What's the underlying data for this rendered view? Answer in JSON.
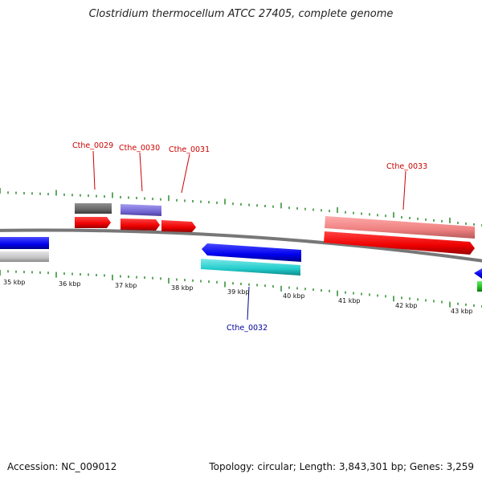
{
  "title": "Clostridium thermocellum ATCC 27405, complete genome",
  "accession_text": "Accession: NC_009012",
  "summary_text": "Topology: circular; Length: 3,843,301 bp; Genes: 3,259",
  "colors": {
    "backbone": "#6f6f6f",
    "tick": "#2a8a2a",
    "label_top": "#cc0000",
    "label_bottom": "#000099"
  },
  "ruler": {
    "labels": [
      "35 kbp",
      "36 kbp",
      "37 kbp",
      "38 kbp",
      "39 kbp",
      "40 kbp",
      "41 kbp",
      "42 kbp",
      "43 kbp"
    ]
  },
  "genes": [
    {
      "label": "Cthe_0029",
      "strand": "top",
      "color": "red"
    },
    {
      "label": "Cthe_0030",
      "strand": "top",
      "color": "red"
    },
    {
      "label": "Cthe_0031",
      "strand": "top",
      "color": "red"
    },
    {
      "label": "Cthe_0033",
      "strand": "top",
      "color": "red"
    },
    {
      "label": "Cthe_0032",
      "strand": "bottom",
      "color": "blue"
    }
  ],
  "features": [
    {
      "name": "gray-feature",
      "color": "#6e6e6e"
    },
    {
      "name": "lavender-feature",
      "color": "#7a6fd6"
    },
    {
      "name": "salmon-feature",
      "color": "#ef8888"
    },
    {
      "name": "cyan-feature",
      "color": "#33cccc"
    },
    {
      "name": "blue-feature",
      "color": "#1111ee"
    },
    {
      "name": "silver-feature",
      "color": "#c0c0c0"
    },
    {
      "name": "green-feature",
      "color": "#22bb22"
    }
  ]
}
